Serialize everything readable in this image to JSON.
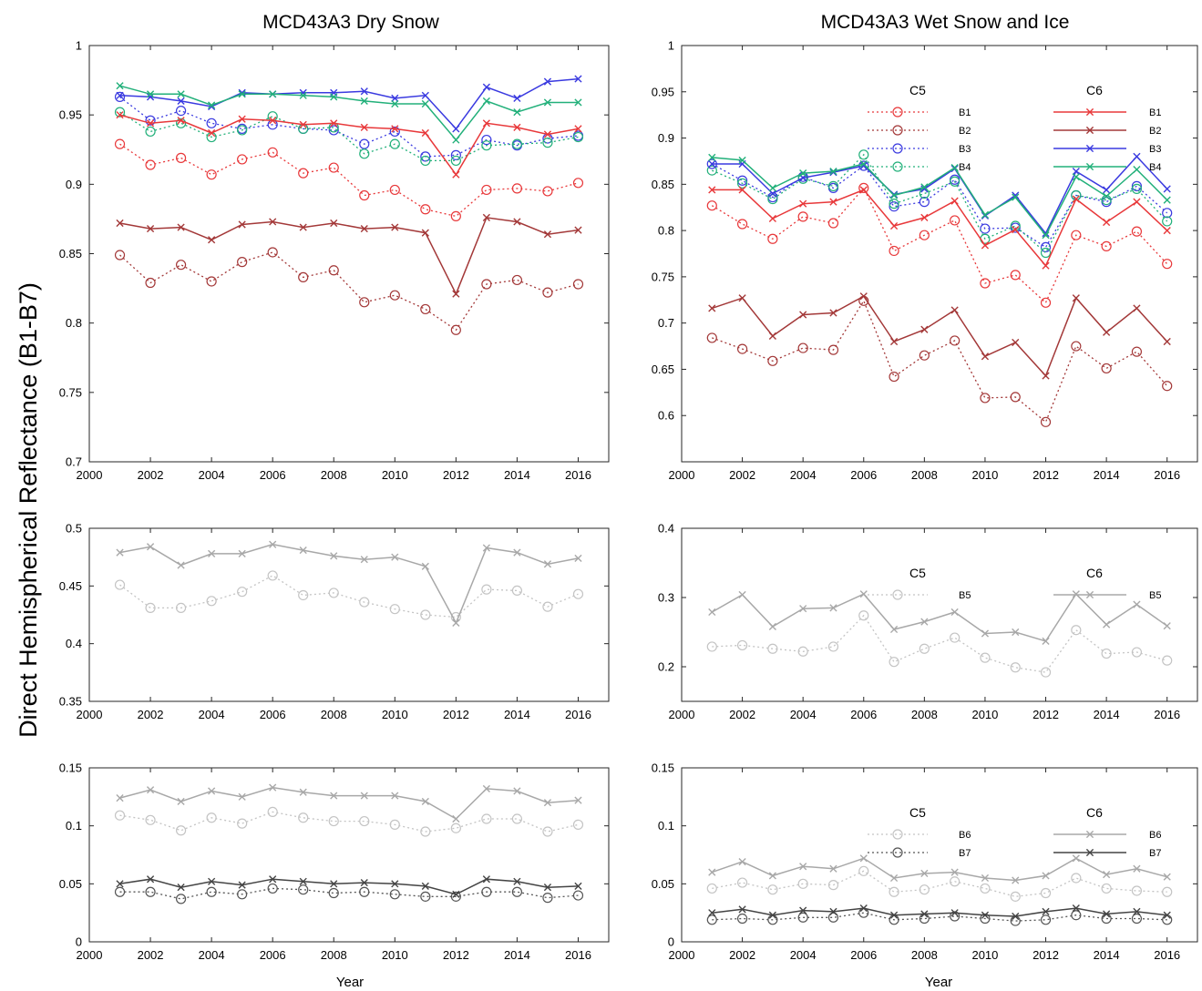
{
  "figure": {
    "ylabel": "Direct Hemispherical Reflectance (B1-B7)",
    "xlabel": "Year",
    "titles": [
      "MCD43A3 Dry Snow",
      "MCD43A3 Wet Snow and Ice"
    ]
  },
  "chart_data": [
    {
      "type": "line",
      "title": "MCD43A3 Dry Snow",
      "xlabel": "",
      "ylabel": "",
      "xlim": [
        2000,
        2017
      ],
      "ylim": [
        0.7,
        1
      ],
      "xticks": [
        "2000",
        "2002",
        "2004",
        "2006",
        "2008",
        "2010",
        "2012",
        "2014",
        "2016"
      ],
      "yticks": [
        "0.7",
        "0.75",
        "0.8",
        "0.85",
        "0.9",
        "0.95",
        "1"
      ],
      "x": [
        2001,
        2002,
        2003,
        2004,
        2005,
        2006,
        2007,
        2008,
        2009,
        2010,
        2011,
        2012,
        2013,
        2014,
        2015,
        2016
      ],
      "legend": null,
      "series": [
        {
          "name": "C5 B1",
          "color": "#e8383a",
          "marker": "o",
          "dash": true,
          "values": [
            0.929,
            0.914,
            0.919,
            0.907,
            0.918,
            0.923,
            0.908,
            0.912,
            0.892,
            0.896,
            0.882,
            0.877,
            0.896,
            0.897,
            0.895,
            0.901
          ]
        },
        {
          "name": "C5 B2",
          "color": "#a33838",
          "marker": "o",
          "dash": true,
          "values": [
            0.849,
            0.829,
            0.842,
            0.83,
            0.844,
            0.851,
            0.833,
            0.838,
            0.815,
            0.82,
            0.81,
            0.795,
            0.828,
            0.831,
            0.822,
            0.828
          ]
        },
        {
          "name": "C5 B3",
          "color": "#3a3ae0",
          "marker": "o",
          "dash": true,
          "values": [
            0.963,
            0.946,
            0.953,
            0.944,
            0.94,
            0.943,
            0.94,
            0.939,
            0.929,
            0.938,
            0.92,
            0.921,
            0.932,
            0.928,
            0.933,
            0.935
          ]
        },
        {
          "name": "C5 B4",
          "color": "#22b07a",
          "marker": "o",
          "dash": true,
          "values": [
            0.952,
            0.938,
            0.944,
            0.934,
            0.939,
            0.949,
            0.94,
            0.941,
            0.922,
            0.929,
            0.917,
            0.917,
            0.928,
            0.929,
            0.93,
            0.934
          ]
        },
        {
          "name": "C6 B1",
          "color": "#e8383a",
          "marker": "x",
          "dash": false,
          "values": [
            0.95,
            0.944,
            0.946,
            0.937,
            0.947,
            0.946,
            0.943,
            0.944,
            0.941,
            0.94,
            0.937,
            0.907,
            0.944,
            0.941,
            0.936,
            0.94
          ]
        },
        {
          "name": "C6 B2",
          "color": "#a33838",
          "marker": "x",
          "dash": false,
          "values": [
            0.872,
            0.868,
            0.869,
            0.86,
            0.871,
            0.873,
            0.869,
            0.872,
            0.868,
            0.869,
            0.865,
            0.821,
            0.876,
            0.873,
            0.864,
            0.867
          ]
        },
        {
          "name": "C6 B3",
          "color": "#3a3ae0",
          "marker": "x",
          "dash": false,
          "values": [
            0.964,
            0.963,
            0.96,
            0.956,
            0.966,
            0.965,
            0.966,
            0.966,
            0.967,
            0.962,
            0.964,
            0.94,
            0.97,
            0.962,
            0.974,
            0.976
          ]
        },
        {
          "name": "C6 B4",
          "color": "#22b07a",
          "marker": "x",
          "dash": false,
          "values": [
            0.971,
            0.965,
            0.965,
            0.957,
            0.965,
            0.965,
            0.964,
            0.963,
            0.96,
            0.958,
            0.958,
            0.932,
            0.96,
            0.952,
            0.959,
            0.959
          ]
        }
      ]
    },
    {
      "type": "line",
      "title": "MCD43A3 Wet Snow and Ice",
      "xlabel": "",
      "ylabel": "",
      "xlim": [
        2000,
        2017
      ],
      "ylim": [
        0.55,
        1
      ],
      "xticks": [
        "2000",
        "2002",
        "2004",
        "2006",
        "2008",
        "2010",
        "2012",
        "2014",
        "2016"
      ],
      "yticks": [
        "0.6",
        "0.65",
        "0.7",
        "0.75",
        "0.8",
        "0.85",
        "0.9",
        "0.95",
        "1"
      ],
      "x": [
        2001,
        2002,
        2003,
        2004,
        2005,
        2006,
        2007,
        2008,
        2009,
        2010,
        2011,
        2012,
        2013,
        2014,
        2015,
        2016
      ],
      "legend": {
        "placement": "top-right",
        "groups": [
          "C5",
          "C6"
        ],
        "entries": [
          "B1",
          "B2",
          "B3",
          "B4"
        ]
      },
      "series": [
        {
          "name": "C5 B1",
          "color": "#e8383a",
          "marker": "o",
          "dash": true,
          "values": [
            0.827,
            0.807,
            0.791,
            0.815,
            0.808,
            0.846,
            0.778,
            0.795,
            0.811,
            0.743,
            0.752,
            0.722,
            0.795,
            0.783,
            0.799,
            0.764
          ]
        },
        {
          "name": "C5 B2",
          "color": "#a33838",
          "marker": "o",
          "dash": true,
          "values": [
            0.684,
            0.672,
            0.659,
            0.673,
            0.671,
            0.724,
            0.642,
            0.665,
            0.681,
            0.619,
            0.62,
            0.593,
            0.675,
            0.651,
            0.669,
            0.632
          ]
        },
        {
          "name": "C5 B3",
          "color": "#3a3ae0",
          "marker": "o",
          "dash": true,
          "values": [
            0.872,
            0.854,
            0.836,
            0.858,
            0.846,
            0.87,
            0.826,
            0.831,
            0.855,
            0.802,
            0.803,
            0.782,
            0.838,
            0.831,
            0.848,
            0.819
          ]
        },
        {
          "name": "C5 B4",
          "color": "#22b07a",
          "marker": "o",
          "dash": true,
          "values": [
            0.865,
            0.851,
            0.834,
            0.856,
            0.848,
            0.882,
            0.829,
            0.84,
            0.853,
            0.791,
            0.805,
            0.776,
            0.838,
            0.833,
            0.845,
            0.81
          ]
        },
        {
          "name": "C6 B1",
          "color": "#e8383a",
          "marker": "x",
          "dash": false,
          "values": [
            0.844,
            0.844,
            0.813,
            0.829,
            0.831,
            0.844,
            0.805,
            0.814,
            0.832,
            0.784,
            0.801,
            0.762,
            0.834,
            0.809,
            0.831,
            0.8
          ]
        },
        {
          "name": "C6 B2",
          "color": "#a33838",
          "marker": "x",
          "dash": false,
          "values": [
            0.716,
            0.727,
            0.686,
            0.709,
            0.711,
            0.729,
            0.68,
            0.693,
            0.714,
            0.664,
            0.679,
            0.643,
            0.727,
            0.69,
            0.716,
            0.68
          ]
        },
        {
          "name": "C6 B3",
          "color": "#3a3ae0",
          "marker": "x",
          "dash": false,
          "values": [
            0.872,
            0.872,
            0.84,
            0.857,
            0.863,
            0.87,
            0.839,
            0.845,
            0.867,
            0.816,
            0.838,
            0.797,
            0.864,
            0.844,
            0.88,
            0.845
          ]
        },
        {
          "name": "C6 B4",
          "color": "#22b07a",
          "marker": "x",
          "dash": false,
          "values": [
            0.879,
            0.876,
            0.846,
            0.862,
            0.864,
            0.872,
            0.838,
            0.847,
            0.868,
            0.817,
            0.836,
            0.795,
            0.858,
            0.837,
            0.866,
            0.833
          ]
        }
      ]
    },
    {
      "type": "line",
      "title": "",
      "xlabel": "",
      "ylabel": "",
      "xlim": [
        2000,
        2017
      ],
      "ylim": [
        0.35,
        0.5
      ],
      "xticks": [
        "2000",
        "2002",
        "2004",
        "2006",
        "2008",
        "2010",
        "2012",
        "2014",
        "2016"
      ],
      "yticks": [
        "0.35",
        "0.4",
        "0.45",
        "0.5"
      ],
      "x": [
        2001,
        2002,
        2003,
        2004,
        2005,
        2006,
        2007,
        2008,
        2009,
        2010,
        2011,
        2012,
        2013,
        2014,
        2015,
        2016
      ],
      "legend": null,
      "series": [
        {
          "name": "C5 B5",
          "color": "#c4c4c4",
          "marker": "o",
          "dash": true,
          "values": [
            0.451,
            0.431,
            0.431,
            0.437,
            0.445,
            0.459,
            0.442,
            0.444,
            0.436,
            0.43,
            0.425,
            0.423,
            0.447,
            0.446,
            0.432,
            0.443
          ]
        },
        {
          "name": "C6 B5",
          "color": "#a8a8a8",
          "marker": "x",
          "dash": false,
          "values": [
            0.479,
            0.484,
            0.468,
            0.478,
            0.478,
            0.486,
            0.481,
            0.476,
            0.473,
            0.475,
            0.467,
            0.418,
            0.483,
            0.479,
            0.469,
            0.474
          ]
        }
      ]
    },
    {
      "type": "line",
      "title": "",
      "xlabel": "",
      "ylabel": "",
      "xlim": [
        2000,
        2017
      ],
      "ylim": [
        0.15,
        0.4
      ],
      "xticks": [
        "2000",
        "2002",
        "2004",
        "2006",
        "2008",
        "2010",
        "2012",
        "2014",
        "2016"
      ],
      "yticks": [
        "0.2",
        "0.3",
        "0.4"
      ],
      "x": [
        2001,
        2002,
        2003,
        2004,
        2005,
        2006,
        2007,
        2008,
        2009,
        2010,
        2011,
        2012,
        2013,
        2014,
        2015,
        2016
      ],
      "legend": {
        "placement": "top-right",
        "groups": [
          "C5",
          "C6"
        ],
        "entries": [
          "B5"
        ]
      },
      "series": [
        {
          "name": "C5 B5",
          "color": "#c4c4c4",
          "marker": "o",
          "dash": true,
          "values": [
            0.229,
            0.231,
            0.226,
            0.222,
            0.229,
            0.274,
            0.207,
            0.226,
            0.242,
            0.213,
            0.199,
            0.192,
            0.253,
            0.219,
            0.221,
            0.209
          ]
        },
        {
          "name": "C6 B5",
          "color": "#a8a8a8",
          "marker": "x",
          "dash": false,
          "values": [
            0.279,
            0.304,
            0.258,
            0.284,
            0.285,
            0.305,
            0.254,
            0.265,
            0.279,
            0.248,
            0.25,
            0.237,
            0.305,
            0.261,
            0.29,
            0.259
          ]
        }
      ]
    },
    {
      "type": "line",
      "title": "",
      "xlabel": "Year",
      "ylabel": "",
      "xlim": [
        2000,
        2017
      ],
      "ylim": [
        0,
        0.15
      ],
      "xticks": [
        "2000",
        "2002",
        "2004",
        "2006",
        "2008",
        "2010",
        "2012",
        "2014",
        "2016"
      ],
      "yticks": [
        "0",
        "0.05",
        "0.1",
        "0.15"
      ],
      "x": [
        2001,
        2002,
        2003,
        2004,
        2005,
        2006,
        2007,
        2008,
        2009,
        2010,
        2011,
        2012,
        2013,
        2014,
        2015,
        2016
      ],
      "legend": null,
      "series": [
        {
          "name": "C5 B6",
          "color": "#c4c4c4",
          "marker": "o",
          "dash": true,
          "values": [
            0.109,
            0.105,
            0.096,
            0.107,
            0.102,
            0.112,
            0.107,
            0.104,
            0.104,
            0.101,
            0.095,
            0.098,
            0.106,
            0.106,
            0.095,
            0.101
          ]
        },
        {
          "name": "C5 B7",
          "color": "#555555",
          "marker": "o",
          "dash": true,
          "values": [
            0.043,
            0.043,
            0.037,
            0.043,
            0.041,
            0.046,
            0.045,
            0.042,
            0.043,
            0.041,
            0.039,
            0.039,
            0.043,
            0.043,
            0.038,
            0.04
          ]
        },
        {
          "name": "C6 B6",
          "color": "#a8a8a8",
          "marker": "x",
          "dash": false,
          "values": [
            0.124,
            0.131,
            0.121,
            0.13,
            0.125,
            0.133,
            0.129,
            0.126,
            0.126,
            0.126,
            0.121,
            0.106,
            0.132,
            0.13,
            0.12,
            0.122
          ]
        },
        {
          "name": "C6 B7",
          "color": "#444444",
          "marker": "x",
          "dash": false,
          "values": [
            0.05,
            0.054,
            0.047,
            0.052,
            0.049,
            0.054,
            0.052,
            0.05,
            0.051,
            0.05,
            0.048,
            0.041,
            0.054,
            0.052,
            0.047,
            0.048
          ]
        }
      ]
    },
    {
      "type": "line",
      "title": "",
      "xlabel": "Year",
      "ylabel": "",
      "xlim": [
        2000,
        2017
      ],
      "ylim": [
        0,
        0.15
      ],
      "xticks": [
        "2000",
        "2002",
        "2004",
        "2006",
        "2008",
        "2010",
        "2012",
        "2014",
        "2016"
      ],
      "yticks": [
        "0",
        "0.05",
        "0.1",
        "0.15"
      ],
      "x": [
        2001,
        2002,
        2003,
        2004,
        2005,
        2006,
        2007,
        2008,
        2009,
        2010,
        2011,
        2012,
        2013,
        2014,
        2015,
        2016
      ],
      "legend": {
        "placement": "top-right",
        "groups": [
          "C5",
          "C6"
        ],
        "entries": [
          "B6",
          "B7"
        ]
      },
      "series": [
        {
          "name": "C5 B6",
          "color": "#c4c4c4",
          "marker": "o",
          "dash": true,
          "values": [
            0.046,
            0.051,
            0.045,
            0.05,
            0.049,
            0.061,
            0.043,
            0.045,
            0.052,
            0.046,
            0.039,
            0.042,
            0.055,
            0.046,
            0.044,
            0.043
          ]
        },
        {
          "name": "C5 B7",
          "color": "#555555",
          "marker": "o",
          "dash": true,
          "values": [
            0.019,
            0.02,
            0.019,
            0.021,
            0.021,
            0.025,
            0.019,
            0.02,
            0.022,
            0.02,
            0.018,
            0.019,
            0.023,
            0.02,
            0.02,
            0.019
          ]
        },
        {
          "name": "C6 B6",
          "color": "#a8a8a8",
          "marker": "x",
          "dash": false,
          "values": [
            0.06,
            0.069,
            0.057,
            0.065,
            0.063,
            0.072,
            0.055,
            0.059,
            0.06,
            0.055,
            0.053,
            0.057,
            0.072,
            0.058,
            0.063,
            0.056
          ]
        },
        {
          "name": "C6 B7",
          "color": "#444444",
          "marker": "x",
          "dash": false,
          "values": [
            0.025,
            0.028,
            0.023,
            0.027,
            0.026,
            0.029,
            0.023,
            0.024,
            0.025,
            0.023,
            0.022,
            0.026,
            0.029,
            0.024,
            0.026,
            0.023
          ]
        }
      ]
    }
  ]
}
